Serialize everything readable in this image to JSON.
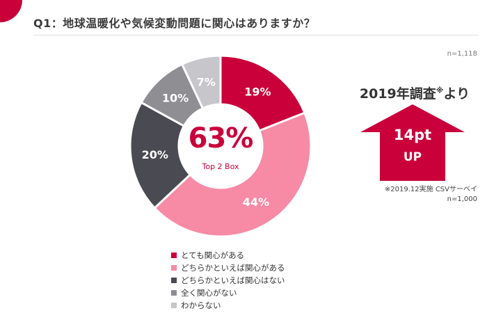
{
  "header": {
    "title": "Q1：地球温暖化や気候変動問題に関心はありますか？",
    "sample_size": "n=1,118"
  },
  "center": {
    "percent": "63%",
    "label": "Top 2 Box"
  },
  "comparison": {
    "title": "2019年調査",
    "title_mark": "※",
    "title_suffix": "より",
    "arrow_line1": "14pt",
    "arrow_line2": "UP",
    "note_line1": "※2019.12実施 CSVサーベイ",
    "note_line2": "n=1,000",
    "arrow_color": "#c9003a"
  },
  "chart_data": {
    "type": "pie",
    "donut": true,
    "categories": [
      "とても関心がある",
      "どちらかといえば関心がある",
      "どちらかといえば関心はない",
      "全く関心がない",
      "わからない"
    ],
    "values": [
      19,
      44,
      20,
      10,
      7
    ],
    "labels": [
      "19%",
      "44%",
      "20%",
      "10%",
      "7%"
    ],
    "colors": [
      "#c9003a",
      "#f78aa4",
      "#4a4a52",
      "#8e8e93",
      "#c6c6cb"
    ],
    "label_colors": [
      "#ffffff",
      "#ffffff",
      "#ffffff",
      "#ffffff",
      "#ffffff"
    ],
    "legend_position": "bottom"
  }
}
